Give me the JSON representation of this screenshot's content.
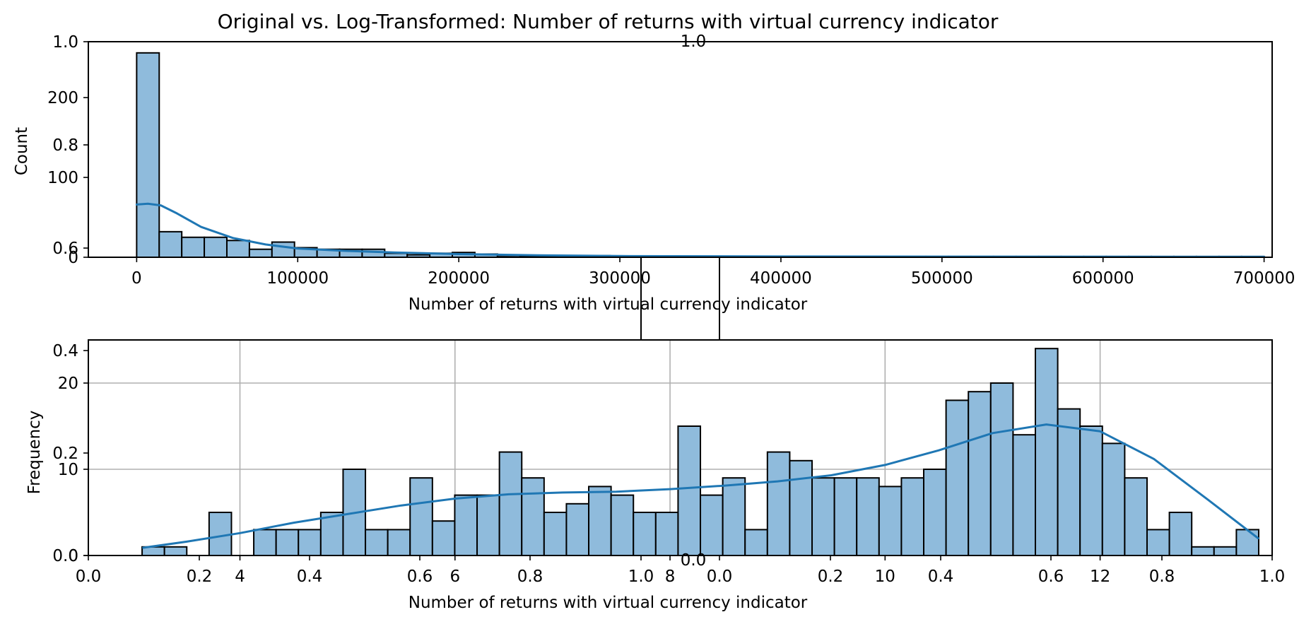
{
  "chart_data": [
    {
      "type": "bar",
      "panel": "top",
      "title": "Original vs. Log-Transformed: Number of returns with virtual currency indicator",
      "xlabel": "Number of returns with virtual currency indicator",
      "ylabel": "Count",
      "xlim": [
        -30000,
        705000
      ],
      "ylim": [
        0,
        270
      ],
      "xticks": [
        0,
        100000,
        200000,
        300000,
        400000,
        500000,
        600000,
        700000
      ],
      "xtick_labels": [
        "0",
        "100000",
        "200000",
        "300000",
        "400000",
        "500000",
        "600000",
        "700000"
      ],
      "yticks": [
        0,
        100,
        200
      ],
      "ytick_labels": [
        "0",
        "100",
        "200"
      ],
      "bin_start": 0,
      "bin_width": 14000,
      "values": [
        256,
        32,
        25,
        25,
        21,
        10,
        19,
        12,
        10,
        10,
        10,
        5,
        3,
        5,
        6,
        4,
        2,
        1,
        1,
        1,
        2,
        1,
        1,
        1,
        1,
        1,
        1,
        1,
        1,
        1,
        1,
        1,
        1,
        1,
        1,
        1,
        1,
        1,
        1,
        1,
        1,
        1,
        1,
        1,
        1,
        1,
        1,
        1,
        1,
        1
      ],
      "kde": [
        [
          0,
          66
        ],
        [
          7000,
          67
        ],
        [
          15000,
          65
        ],
        [
          25000,
          55
        ],
        [
          40000,
          38
        ],
        [
          60000,
          24
        ],
        [
          80000,
          16
        ],
        [
          100000,
          11
        ],
        [
          130000,
          8
        ],
        [
          160000,
          6
        ],
        [
          200000,
          4
        ],
        [
          250000,
          2.5
        ],
        [
          300000,
          1.5
        ],
        [
          400000,
          1
        ],
        [
          500000,
          0.8
        ],
        [
          600000,
          0.6
        ],
        [
          700000,
          0.5
        ]
      ],
      "grid": false
    },
    {
      "type": "bar",
      "panel": "bottom",
      "xlabel": "Number of returns with virtual currency indicator",
      "ylabel": "Frequency",
      "xlim": [
        2.59,
        13.6
      ],
      "ylim": [
        0,
        25
      ],
      "xticks": [
        4,
        6,
        8,
        10,
        12
      ],
      "xtick_labels": [
        "4",
        "6",
        "8",
        "10",
        "12"
      ],
      "yticks": [
        0,
        10,
        20
      ],
      "ytick_labels": [
        "0",
        "10",
        "20"
      ],
      "bin_start": 3.09,
      "bin_width": 0.2077,
      "values": [
        1,
        1,
        0,
        5,
        0,
        3,
        3,
        3,
        5,
        10,
        3,
        3,
        9,
        4,
        7,
        7,
        12,
        9,
        5,
        6,
        8,
        7,
        5,
        5,
        15,
        7,
        9,
        3,
        12,
        11,
        9,
        9,
        9,
        8,
        9,
        10,
        18,
        19,
        20,
        14,
        24,
        17,
        15,
        13,
        9,
        3,
        5,
        1,
        1,
        3
      ],
      "kde": [
        [
          3.1,
          0.9
        ],
        [
          3.5,
          1.6
        ],
        [
          4.0,
          2.6
        ],
        [
          4.5,
          3.8
        ],
        [
          5.0,
          4.8
        ],
        [
          5.5,
          5.8
        ],
        [
          6.0,
          6.6
        ],
        [
          6.5,
          7.1
        ],
        [
          7.0,
          7.3
        ],
        [
          7.5,
          7.4
        ],
        [
          8.0,
          7.7
        ],
        [
          8.5,
          8.1
        ],
        [
          9.0,
          8.6
        ],
        [
          9.5,
          9.3
        ],
        [
          10.0,
          10.5
        ],
        [
          10.5,
          12.2
        ],
        [
          11.0,
          14.2
        ],
        [
          11.5,
          15.2
        ],
        [
          12.0,
          14.4
        ],
        [
          12.5,
          11.2
        ],
        [
          13.0,
          6.5
        ],
        [
          13.47,
          2.0
        ]
      ],
      "grid": true
    }
  ],
  "overlay_axes": {
    "top_y_ticks": [
      "0.6",
      "0.8",
      "1.0"
    ],
    "top_x_tick": "1.0",
    "bottom_x_ticks": [
      "0.0",
      "0.2",
      "0.4",
      "0.6",
      "0.8",
      "1.0",
      "0.0",
      "0.2",
      "0.4",
      "0.6",
      "0.8",
      "1.0"
    ],
    "bottom_y_ticks": [
      "0.0",
      "0.2",
      "0.4"
    ],
    "center_x_tick": "0.0"
  },
  "colors": {
    "bar_fill": "#8fbbdc",
    "bar_edge": "#000000",
    "kde_line": "#1f77b4",
    "grid": "#b0b0b0"
  }
}
